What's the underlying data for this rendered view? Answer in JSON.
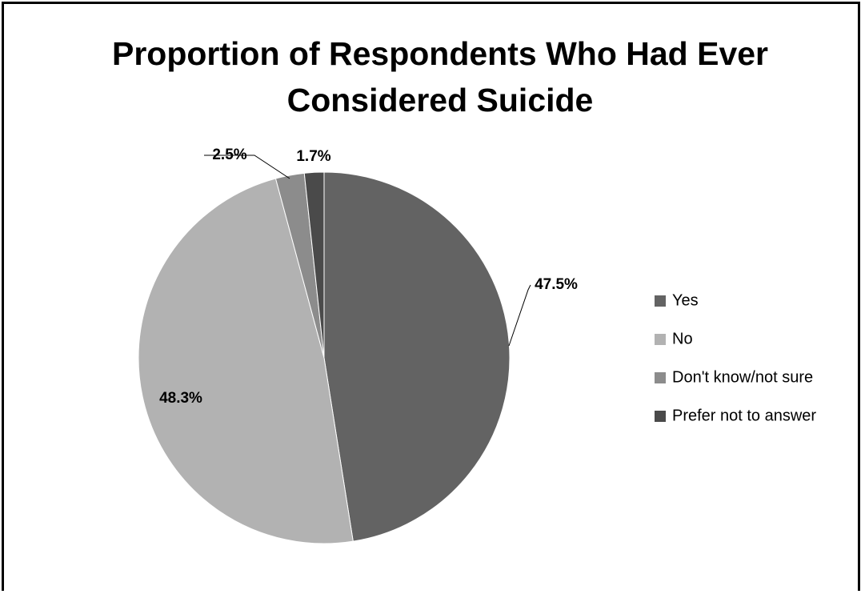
{
  "chart_data": {
    "type": "pie",
    "title": "Proportion of Respondents Who Had Ever Considered Suicide",
    "categories": [
      "Yes",
      "No",
      "Don't know/not sure",
      "Prefer not to answer"
    ],
    "values": [
      47.5,
      48.3,
      2.5,
      1.7
    ],
    "value_labels": [
      "47.5%",
      "48.3%",
      "2.5%",
      "1.7%"
    ],
    "colors": [
      "#636363",
      "#b2b2b2",
      "#8c8c8c",
      "#4a4a4a"
    ],
    "legend": "right"
  }
}
